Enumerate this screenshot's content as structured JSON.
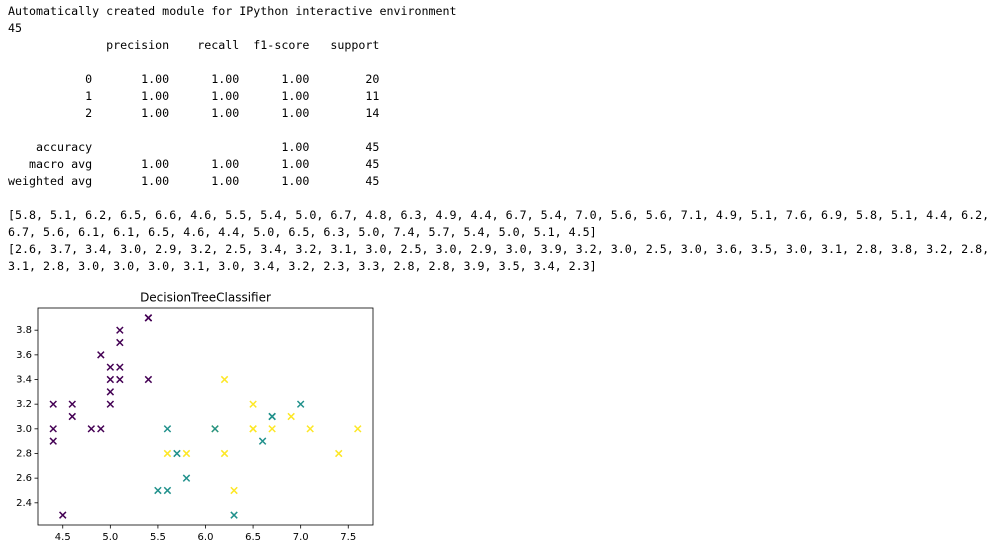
{
  "output": {
    "intro": "Automatically created module for IPython interactive environment",
    "count": "45",
    "report": {
      "header": "              precision    recall  f1-score   support",
      "classes": [
        "           0       1.00      1.00      1.00        20",
        "           1       1.00      1.00      1.00        11",
        "           2       1.00      1.00      1.00        14"
      ],
      "summary": [
        "    accuracy                           1.00        45",
        "   macro avg       1.00      1.00      1.00        45",
        "weighted avg       1.00      1.00      1.00        45"
      ]
    },
    "x_list_lines": [
      "[5.8, 5.1, 6.2, 6.5, 6.6, 4.6, 5.5, 5.4, 5.0, 6.7, 4.8, 6.3, 4.9, 4.4, 6.7, 5.4, 7.0, 5.6, 5.6, 7.1, 4.9, 5.1, 7.6, 6.9, 5.8, 5.1, 4.4, 6.2,",
      "6.7, 5.6, 6.1, 6.1, 6.5, 4.6, 4.4, 5.0, 6.5, 6.3, 5.0, 7.4, 5.7, 5.4, 5.0, 5.1, 4.5]"
    ],
    "y_list_lines": [
      "[2.6, 3.7, 3.4, 3.0, 2.9, 3.2, 2.5, 3.4, 3.2, 3.1, 3.0, 2.5, 3.0, 2.9, 3.0, 3.9, 3.2, 3.0, 2.5, 3.0, 3.6, 3.5, 3.0, 3.1, 2.8, 3.8, 3.2, 2.8,",
      "3.1, 2.8, 3.0, 3.0, 3.0, 3.1, 3.0, 3.4, 3.2, 2.3, 3.3, 2.8, 2.8, 3.9, 3.5, 3.4, 2.3]"
    ]
  },
  "chart_data": {
    "type": "scatter",
    "title": "DecisionTreeClassifier",
    "x": [
      5.8,
      5.1,
      6.2,
      6.5,
      6.6,
      4.6,
      5.5,
      5.4,
      5.0,
      6.7,
      4.8,
      6.3,
      4.9,
      4.4,
      6.7,
      5.4,
      7.0,
      5.6,
      5.6,
      7.1,
      4.9,
      5.1,
      7.6,
      6.9,
      5.8,
      5.1,
      4.4,
      6.2,
      6.7,
      5.6,
      6.1,
      6.1,
      6.5,
      4.6,
      4.4,
      5.0,
      6.5,
      6.3,
      5.0,
      7.4,
      5.7,
      5.4,
      5.0,
      5.1,
      4.5
    ],
    "values": [
      2.6,
      3.7,
      3.4,
      3.0,
      2.9,
      3.2,
      2.5,
      3.4,
      3.2,
      3.1,
      3.0,
      2.5,
      3.0,
      2.9,
      3.0,
      3.9,
      3.2,
      3.0,
      2.5,
      3.0,
      3.6,
      3.5,
      3.0,
      3.1,
      2.8,
      3.8,
      3.2,
      2.8,
      3.1,
      2.8,
      3.0,
      3.0,
      3.0,
      3.1,
      3.0,
      3.4,
      3.2,
      2.3,
      3.3,
      2.8,
      2.8,
      3.9,
      3.5,
      3.4,
      2.3
    ],
    "colors": [
      "#21918c",
      "#440154",
      "#fde725",
      "#fde725",
      "#21918c",
      "#440154",
      "#21918c",
      "#440154",
      "#440154",
      "#21918c",
      "#440154",
      "#fde725",
      "#440154",
      "#440154",
      "#fde725",
      "#440154",
      "#21918c",
      "#21918c",
      "#21918c",
      "#fde725",
      "#440154",
      "#440154",
      "#fde725",
      "#fde725",
      "#fde725",
      "#440154",
      "#440154",
      "#fde725",
      "#21918c",
      "#fde725",
      "#fde725",
      "#21918c",
      "#fde725",
      "#440154",
      "#440154",
      "#440154",
      "#fde725",
      "#21918c",
      "#440154",
      "#fde725",
      "#21918c",
      "#440154",
      "#440154",
      "#440154",
      "#440154"
    ],
    "marker": "x",
    "xlim": [
      4.24,
      7.76
    ],
    "ylim": [
      2.22,
      3.98
    ],
    "xticks": [
      4.5,
      {
        "value": 5,
        "label": "5.0"
      },
      5.5,
      {
        "value": 6,
        "label": "6.0"
      },
      6.5,
      {
        "value": 7,
        "label": "7.0"
      },
      7.5
    ],
    "yticks": [
      2.4,
      2.6,
      2.8,
      {
        "value": 3,
        "label": "3.0"
      },
      3.2,
      3.4,
      3.6,
      3.8
    ]
  }
}
